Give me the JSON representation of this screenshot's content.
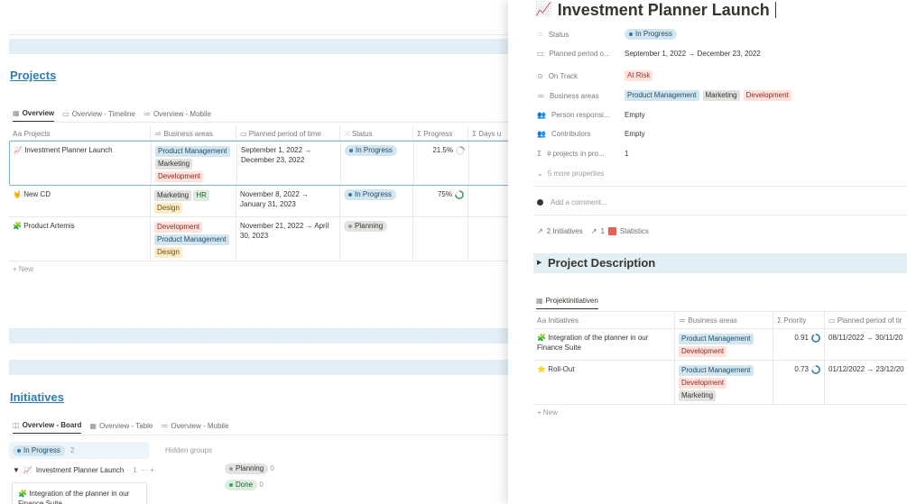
{
  "projects_section": {
    "title": "Projects",
    "tabs": [
      {
        "icon": "table-icon",
        "label": "Overview"
      },
      {
        "icon": "timeline-icon",
        "label": "Overview - Timeline"
      },
      {
        "icon": "list-icon",
        "label": "Overview - Mobile"
      }
    ],
    "columns": [
      {
        "icon": "Aa",
        "label": "Projects"
      },
      {
        "icon": "≔",
        "label": "Business areas"
      },
      {
        "icon": "▭",
        "label": "Planned period of time"
      },
      {
        "icon": "⁙",
        "label": "Status"
      },
      {
        "icon": "Σ",
        "label": "Progress"
      },
      {
        "icon": "Σ",
        "label": "Days u"
      }
    ],
    "rows": [
      {
        "emoji": "📈",
        "name": "Investment Planner Launch",
        "areas": [
          "Product Management",
          "Marketing",
          "Development"
        ],
        "period": "September 1, 2022 → December 23, 2022",
        "status": "In Progress",
        "progress": "21.5%",
        "progress_value": 0.215
      },
      {
        "emoji": "🤘",
        "name": "New CD",
        "areas": [
          "Marketing",
          "HR",
          "Design"
        ],
        "period": "November 8, 2022 → January 31, 2023",
        "status": "In Progress",
        "progress": "75%",
        "progress_value": 0.75
      },
      {
        "emoji": "🧩",
        "name": "Product Artemis",
        "areas": [
          "Development",
          "Product Management",
          "Design"
        ],
        "period": "November 21, 2022 → April 30, 2023",
        "status": "Planning",
        "progress": "",
        "progress_value": 0
      }
    ],
    "new_label": "+ New"
  },
  "initiatives_section": {
    "title": "Initiatives",
    "tabs": [
      {
        "icon": "board-icon",
        "label": "Overview - Board"
      },
      {
        "icon": "table-icon",
        "label": "Overview - Table"
      },
      {
        "icon": "list-icon",
        "label": "Overview - Mobile"
      }
    ],
    "group_in_progress": "In Progress",
    "group_count": "2",
    "hidden_groups": "Hidden groups",
    "sub_group": "Investment Planner Launch",
    "sub_count": "1",
    "sub_actions": "··· +",
    "hidden": [
      {
        "label": "Planning",
        "count": "0"
      },
      {
        "label": "Done",
        "count": "0"
      }
    ],
    "card_title": "Integration of the planner in our Finance Suite"
  },
  "panel": {
    "emoji": "📈",
    "title": "Investment Planner Launch",
    "props": {
      "status_key": "Status",
      "status_val": "In Progress",
      "period_key": "Planned period o...",
      "period_val": "September 1, 2022 → December 23, 2022",
      "ontrack_key": "On Track",
      "ontrack_val": "At Risk",
      "areas_key": "Business areas",
      "areas": [
        "Product Management",
        "Marketing",
        "Development"
      ],
      "person_key": "Person responsi...",
      "person_val": "Empty",
      "contrib_key": "Contributors",
      "contrib_val": "Empty",
      "count_key": "# projects in pro...",
      "count_val": "1",
      "more": "5 more properties"
    },
    "comment": "Add a comment...",
    "links": [
      {
        "label": "2 Initiatives"
      },
      {
        "label": "1"
      },
      {
        "label": "Statistics"
      }
    ],
    "toggle_title": "Project Description",
    "sub_tab": "Projektinitiativen",
    "sub_columns": [
      {
        "icon": "Aa",
        "label": "Initiatives"
      },
      {
        "icon": "≔",
        "label": "Business areas"
      },
      {
        "icon": "Σ",
        "label": "Priority"
      },
      {
        "icon": "▭",
        "label": "Planned period of tir"
      }
    ],
    "sub_rows": [
      {
        "emoji": "🧩",
        "name": "Integration of the planner in our Finance Suite",
        "areas": [
          "Product Management",
          "Development"
        ],
        "priority": "0.91",
        "period": "08/11/2022 → 30/11/20"
      },
      {
        "emoji": "⭐",
        "name": "Roll-Out",
        "areas": [
          "Product Management",
          "Development",
          "Marketing"
        ],
        "priority": "0.73",
        "period": "01/12/2022 → 23/12/20"
      }
    ],
    "new_label": "+ New"
  },
  "colors": {
    "accent": "#2f7bb0",
    "band": "#e3eff6",
    "in_progress": "#d3e5ef"
  }
}
